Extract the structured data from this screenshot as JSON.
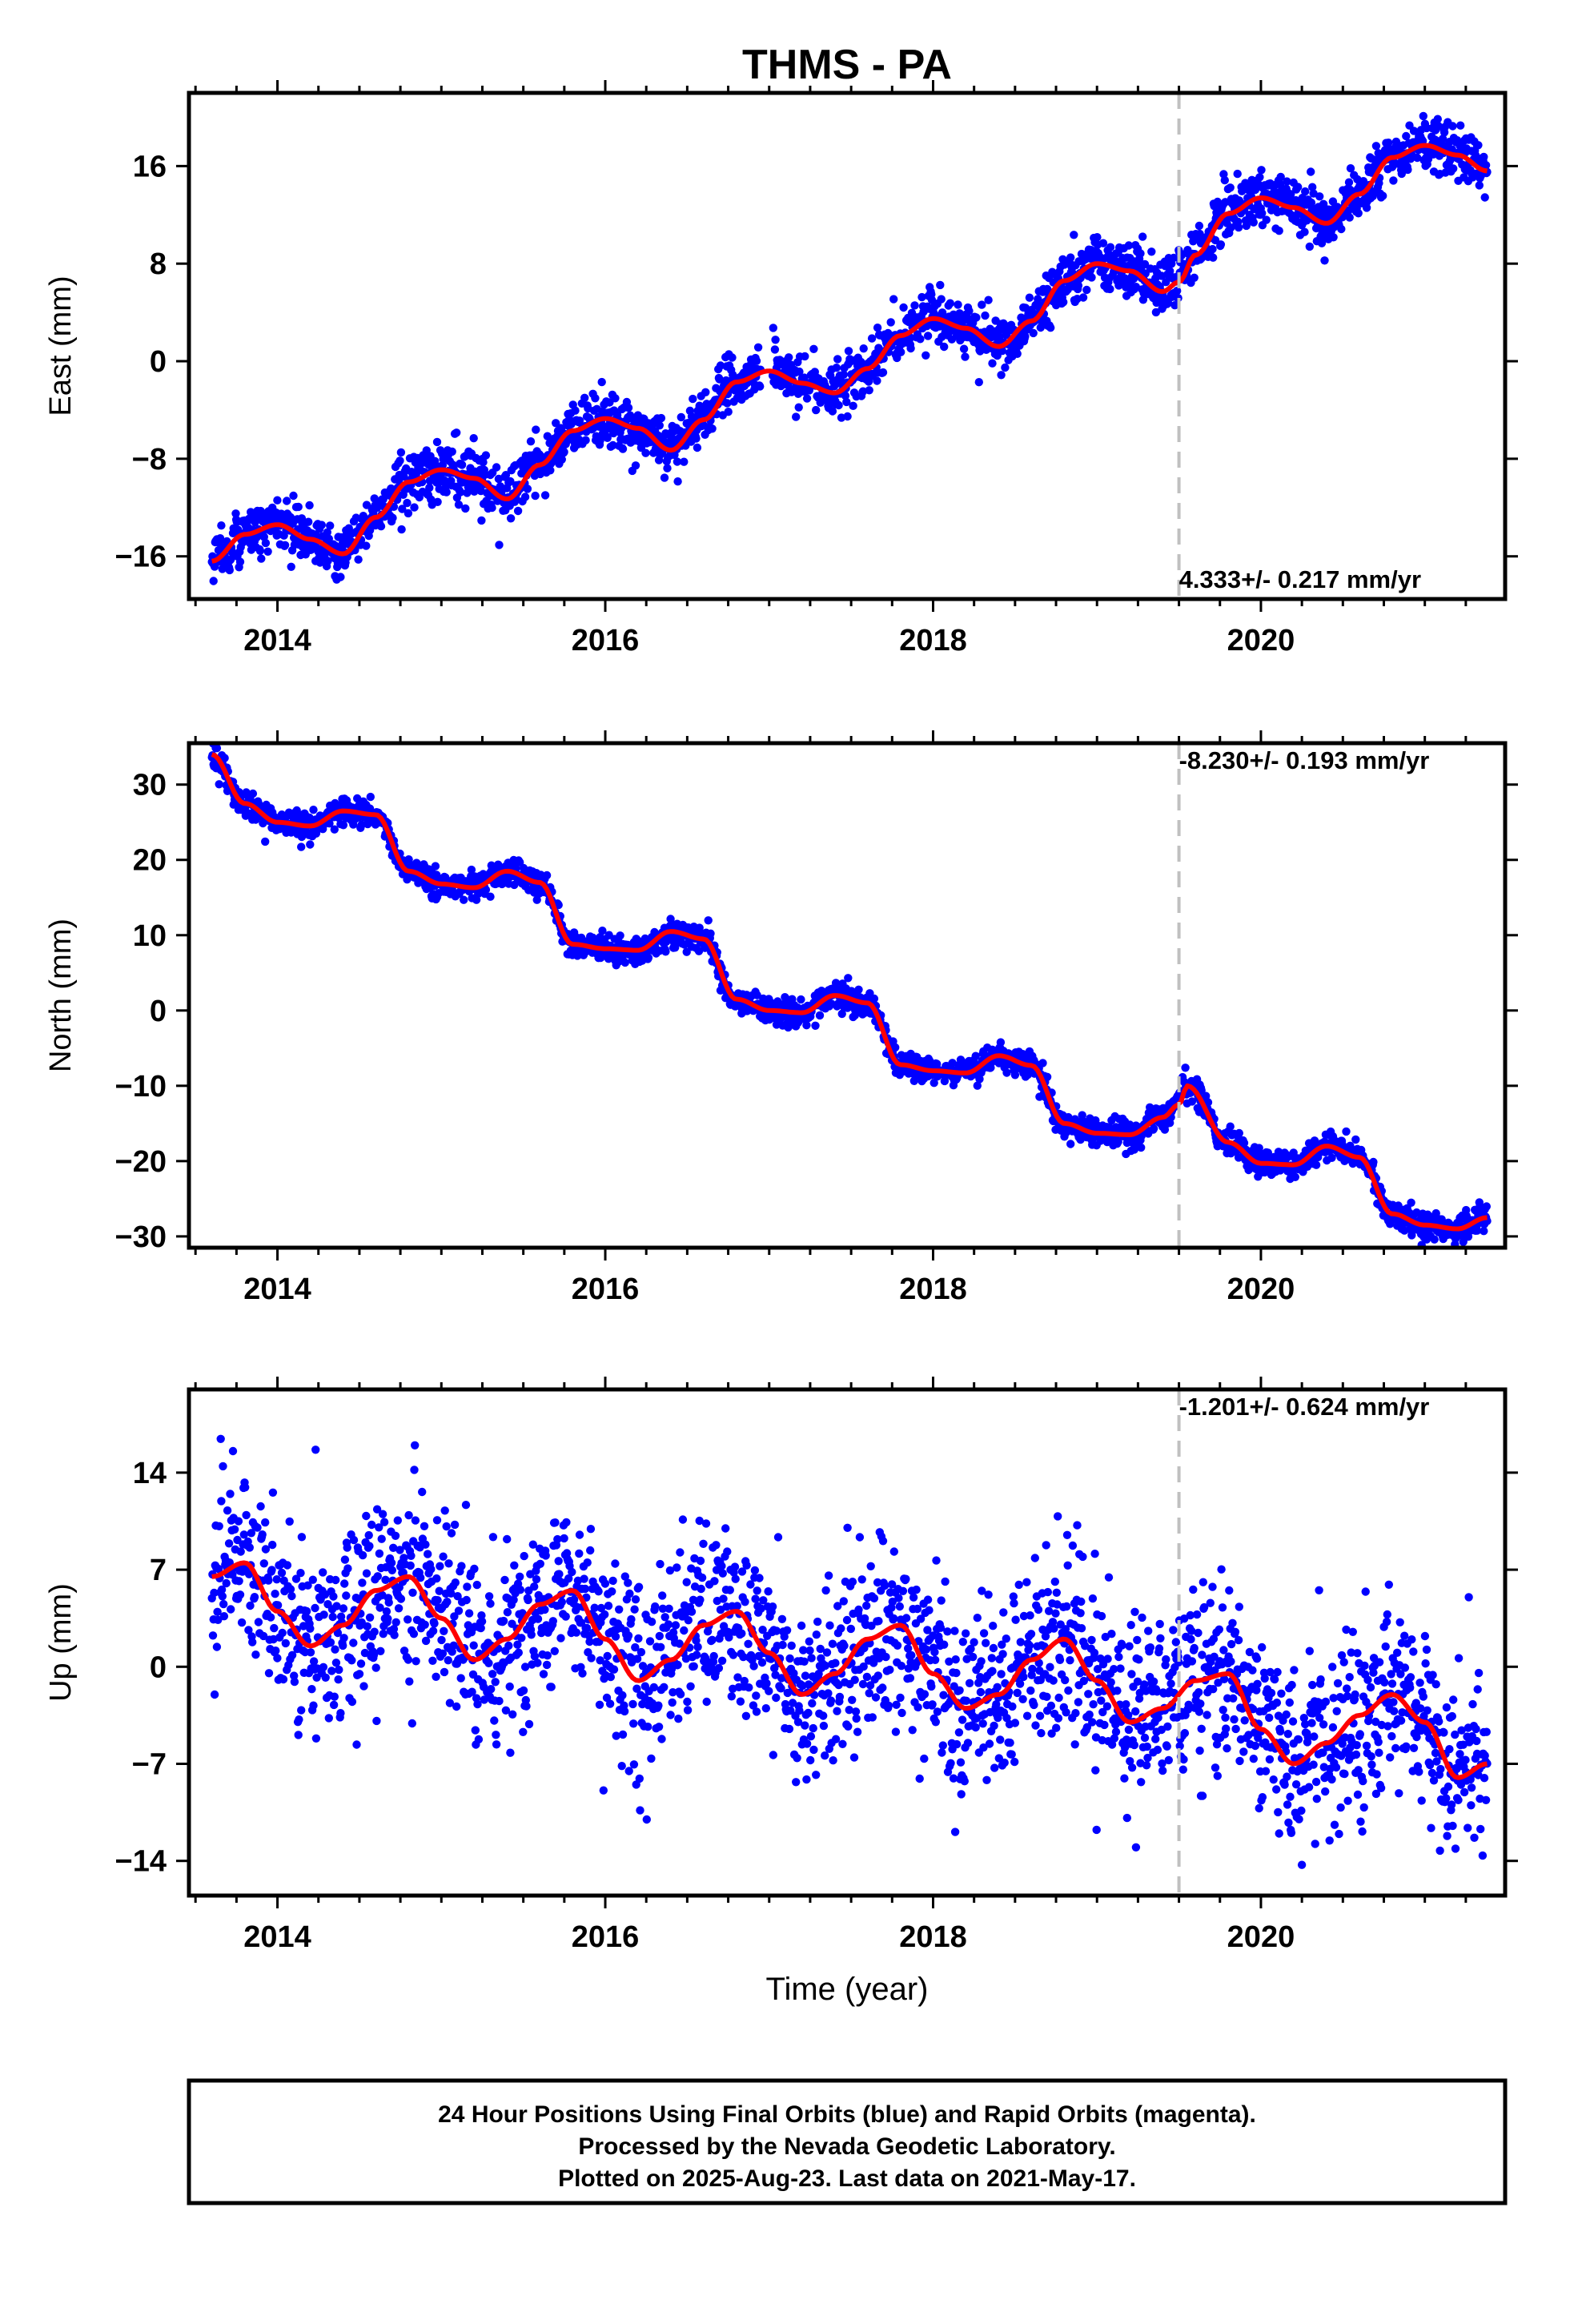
{
  "title": "THMS - PA",
  "xlabel": "Time (year)",
  "footer": {
    "line1": "24 Hour Positions Using Final Orbits (blue) and Rapid Orbits (magenta).",
    "line2": "Processed by the Nevada Geodetic Laboratory.",
    "line3": "Plotted on 2025-Aug-23. Last data on 2021-May-17."
  },
  "colors": {
    "data_points": "#0000ff",
    "model_fit": "#ff0000",
    "event_line": "#c0c0c0",
    "frame": "#000000"
  },
  "chart_data": [
    {
      "type": "scatter",
      "ylabel": "East (mm)",
      "xlim": [
        2013.46,
        2021.49
      ],
      "ylim": [
        -19.5,
        22.0
      ],
      "x_ticks": [
        2014,
        2016,
        2018,
        2020
      ],
      "y_ticks": [
        -16,
        -8,
        0,
        8,
        16
      ],
      "y_tick_labels": [
        "−16",
        "−8",
        "0",
        "8",
        "16"
      ],
      "rate_label": "4.333+/- 0.217 mm/yr",
      "event_line_x": 2019.5,
      "data_start": 2013.6,
      "data_end": 2021.38,
      "series": [
        {
          "type": "scatter",
          "x": [
            2013.6,
            2013.8,
            2014.0,
            2014.2,
            2014.4,
            2014.6,
            2014.8,
            2015.0,
            2015.2,
            2015.4,
            2015.6,
            2015.8,
            2016.0,
            2016.2,
            2016.4,
            2016.6,
            2016.8,
            2017.0,
            2017.2,
            2017.4,
            2017.6,
            2017.8,
            2018.0,
            2018.2,
            2018.4,
            2018.6,
            2018.8,
            2019.0,
            2019.2,
            2019.4,
            2019.6,
            2019.8,
            2020.0,
            2020.2,
            2020.4,
            2020.6,
            2020.8,
            2021.0,
            2021.2,
            2021.38
          ],
          "y": [
            -16.2,
            -14.2,
            -13.3,
            -14.5,
            -15.6,
            -12.6,
            -9.8,
            -8.8,
            -9.5,
            -11.2,
            -8.4,
            -5.6,
            -4.6,
            -5.4,
            -7.2,
            -4.7,
            -1.6,
            -0.7,
            -1.7,
            -2.5,
            -0.5,
            2.2,
            3.6,
            2.8,
            1.3,
            3.4,
            6.7,
            8.1,
            7.5,
            5.8,
            8.8,
            12.2,
            13.5,
            12.7,
            11.4,
            13.8,
            16.8,
            17.8,
            17.0,
            15.7
          ]
        },
        {
          "type": "line",
          "x": [
            2013.6,
            2013.8,
            2014.0,
            2014.2,
            2014.4,
            2014.6,
            2014.8,
            2015.0,
            2015.2,
            2015.4,
            2015.6,
            2015.8,
            2016.0,
            2016.2,
            2016.4,
            2016.6,
            2016.8,
            2017.0,
            2017.2,
            2017.4,
            2017.6,
            2017.8,
            2018.0,
            2018.2,
            2018.4,
            2018.6,
            2018.8,
            2019.0,
            2019.2,
            2019.4,
            2019.5,
            2019.6,
            2019.8,
            2020.0,
            2020.2,
            2020.4,
            2020.6,
            2020.8,
            2021.0,
            2021.2,
            2021.38
          ],
          "y": [
            -16.4,
            -14.2,
            -13.4,
            -14.6,
            -15.8,
            -12.8,
            -9.9,
            -8.9,
            -9.6,
            -11.3,
            -8.5,
            -5.7,
            -4.7,
            -5.5,
            -7.3,
            -4.8,
            -1.7,
            -0.8,
            -1.8,
            -2.6,
            -0.6,
            2.1,
            3.5,
            2.7,
            1.2,
            3.3,
            6.6,
            8.0,
            7.4,
            5.7,
            6.5,
            8.7,
            12.1,
            13.4,
            12.6,
            11.3,
            13.7,
            16.7,
            17.7,
            16.9,
            15.6
          ]
        }
      ]
    },
    {
      "type": "scatter",
      "ylabel": "North (mm)",
      "xlim": [
        2013.46,
        2021.49
      ],
      "ylim": [
        -31.5,
        35.5
      ],
      "x_ticks": [
        2014,
        2016,
        2018,
        2020
      ],
      "y_ticks": [
        -30,
        -20,
        -10,
        0,
        10,
        20,
        30
      ],
      "y_tick_labels": [
        "−30",
        "−20",
        "−10",
        "0",
        "10",
        "20",
        "30"
      ],
      "rate_label": "-8.230+/- 0.193 mm/yr",
      "event_line_x": 2019.5,
      "data_start": 2013.6,
      "data_end": 2021.38,
      "series": [
        {
          "type": "scatter",
          "x": [
            2013.6,
            2013.8,
            2014.0,
            2014.2,
            2014.4,
            2014.6,
            2014.8,
            2015.0,
            2015.2,
            2015.4,
            2015.6,
            2015.8,
            2016.0,
            2016.2,
            2016.4,
            2016.6,
            2016.8,
            2017.0,
            2017.2,
            2017.4,
            2017.6,
            2017.8,
            2018.0,
            2018.2,
            2018.4,
            2018.6,
            2018.8,
            2019.0,
            2019.2,
            2019.4,
            2019.55,
            2019.8,
            2020.0,
            2020.2,
            2020.4,
            2020.6,
            2020.8,
            2021.0,
            2021.2,
            2021.38
          ],
          "y": [
            34.0,
            27.5,
            25.0,
            24.5,
            26.5,
            26.0,
            18.5,
            16.8,
            16.3,
            18.5,
            17.0,
            8.8,
            8.2,
            8.0,
            10.5,
            9.5,
            1.5,
            0.0,
            -0.3,
            2.0,
            1.0,
            -7.2,
            -8.0,
            -8.3,
            -6.0,
            -7.3,
            -15.0,
            -16.3,
            -16.5,
            -14.2,
            -10.0,
            -17.5,
            -20.3,
            -20.5,
            -18.0,
            -19.5,
            -27.0,
            -28.5,
            -29.0,
            -27.5
          ]
        },
        {
          "type": "line",
          "x": [
            2013.6,
            2013.8,
            2014.0,
            2014.2,
            2014.4,
            2014.6,
            2014.8,
            2015.0,
            2015.2,
            2015.4,
            2015.6,
            2015.8,
            2016.0,
            2016.2,
            2016.4,
            2016.6,
            2016.8,
            2017.0,
            2017.2,
            2017.4,
            2017.6,
            2017.8,
            2018.0,
            2018.2,
            2018.4,
            2018.6,
            2018.8,
            2019.0,
            2019.2,
            2019.4,
            2019.5,
            2019.55,
            2019.8,
            2020.0,
            2020.2,
            2020.4,
            2020.6,
            2020.8,
            2021.0,
            2021.2,
            2021.38
          ],
          "y": [
            34.0,
            27.5,
            25.0,
            24.5,
            26.5,
            26.0,
            18.5,
            16.8,
            16.3,
            18.5,
            17.0,
            8.8,
            8.2,
            8.0,
            10.5,
            9.5,
            1.5,
            0.0,
            -0.3,
            2.0,
            1.0,
            -7.2,
            -8.0,
            -8.3,
            -6.0,
            -7.3,
            -15.0,
            -16.3,
            -16.5,
            -14.2,
            -12.5,
            -10.0,
            -17.5,
            -20.3,
            -20.5,
            -18.0,
            -19.5,
            -27.0,
            -28.5,
            -29.0,
            -27.5
          ]
        }
      ]
    },
    {
      "type": "scatter",
      "ylabel": "Up (mm)",
      "xlim": [
        2013.46,
        2021.49
      ],
      "ylim": [
        -16.5,
        20.0
      ],
      "x_ticks": [
        2014,
        2016,
        2018,
        2020
      ],
      "y_ticks": [
        -14,
        -7,
        0,
        7,
        14
      ],
      "y_tick_labels": [
        "−14",
        "−7",
        "0",
        "7",
        "14"
      ],
      "rate_label": "-1.201+/- 0.624 mm/yr",
      "event_line_x": 2019.5,
      "data_start": 2013.6,
      "data_end": 2021.38,
      "series": [
        {
          "type": "scatter",
          "x": [
            2013.6,
            2013.8,
            2014.0,
            2014.2,
            2014.4,
            2014.6,
            2014.8,
            2015.0,
            2015.2,
            2015.4,
            2015.6,
            2015.8,
            2016.0,
            2016.2,
            2016.4,
            2016.6,
            2016.8,
            2017.0,
            2017.2,
            2017.4,
            2017.6,
            2017.8,
            2018.0,
            2018.2,
            2018.4,
            2018.6,
            2018.8,
            2019.0,
            2019.2,
            2019.4,
            2019.6,
            2019.8,
            2020.0,
            2020.2,
            2020.4,
            2020.6,
            2020.8,
            2021.0,
            2021.2,
            2021.38
          ],
          "y": [
            6.5,
            7.5,
            4.0,
            1.5,
            3.0,
            5.5,
            6.5,
            3.5,
            0.5,
            2.0,
            4.5,
            5.5,
            2.0,
            -1.0,
            0.5,
            3.0,
            4.0,
            1.0,
            -2.0,
            -0.5,
            2.0,
            3.0,
            -0.5,
            -3.0,
            -2.0,
            0.5,
            2.0,
            -1.0,
            -4.0,
            -3.0,
            -1.0,
            -0.5,
            -4.5,
            -7.0,
            -5.5,
            -3.5,
            -2.0,
            -4.0,
            -8.0,
            -7.0
          ]
        },
        {
          "type": "line",
          "x": [
            2013.6,
            2013.8,
            2014.0,
            2014.2,
            2014.4,
            2014.6,
            2014.8,
            2015.0,
            2015.2,
            2015.4,
            2015.6,
            2015.8,
            2016.0,
            2016.2,
            2016.4,
            2016.6,
            2016.8,
            2017.0,
            2017.2,
            2017.4,
            2017.6,
            2017.8,
            2018.0,
            2018.2,
            2018.4,
            2018.6,
            2018.8,
            2019.0,
            2019.2,
            2019.4,
            2019.6,
            2019.8,
            2020.0,
            2020.2,
            2020.4,
            2020.6,
            2020.8,
            2021.0,
            2021.2,
            2021.38
          ],
          "y": [
            6.5,
            7.5,
            4.0,
            1.5,
            3.0,
            5.5,
            6.5,
            3.5,
            0.5,
            2.0,
            4.5,
            5.5,
            2.0,
            -1.0,
            0.5,
            3.0,
            4.0,
            1.0,
            -2.0,
            -0.5,
            2.0,
            3.0,
            -0.5,
            -3.0,
            -2.0,
            0.5,
            2.0,
            -1.0,
            -4.0,
            -3.0,
            -1.0,
            -0.5,
            -4.5,
            -7.0,
            -5.5,
            -3.5,
            -2.0,
            -4.0,
            -8.0,
            -7.0
          ]
        }
      ]
    }
  ]
}
